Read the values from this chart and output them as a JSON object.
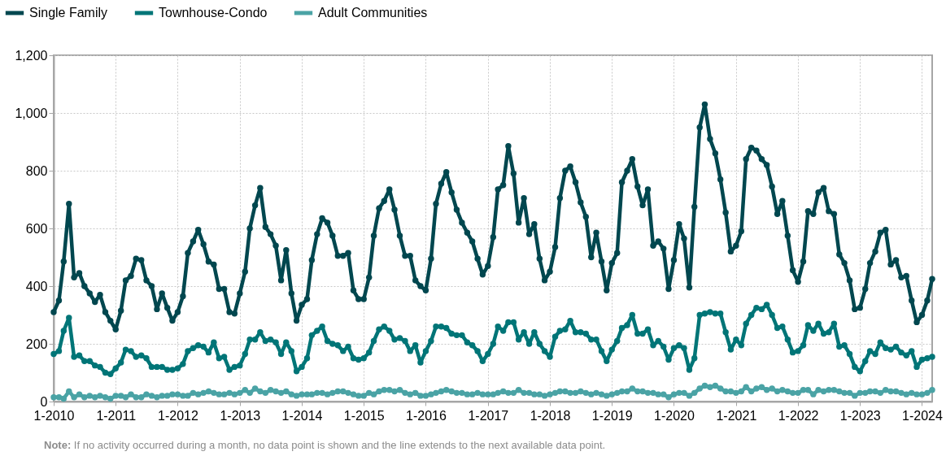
{
  "chart_data": {
    "type": "line",
    "legend": "top left",
    "marker": "circle",
    "grid": true,
    "annotations": [
      "Note: If no activity occurred during a month, no data point is shown and the line extends to the next available data point."
    ],
    "x": [
      "2010-01",
      "2010-02",
      "2010-03",
      "2010-04",
      "2010-05",
      "2010-06",
      "2010-07",
      "2010-08",
      "2010-09",
      "2010-10",
      "2010-11",
      "2010-12",
      "2011-01",
      "2011-02",
      "2011-03",
      "2011-04",
      "2011-05",
      "2011-06",
      "2011-07",
      "2011-08",
      "2011-09",
      "2011-10",
      "2011-11",
      "2011-12",
      "2012-01",
      "2012-02",
      "2012-03",
      "2012-04",
      "2012-05",
      "2012-06",
      "2012-07",
      "2012-08",
      "2012-09",
      "2012-10",
      "2012-11",
      "2012-12",
      "2013-01",
      "2013-02",
      "2013-03",
      "2013-04",
      "2013-05",
      "2013-06",
      "2013-07",
      "2013-08",
      "2013-09",
      "2013-10",
      "2013-11",
      "2013-12",
      "2014-01",
      "2014-02",
      "2014-03",
      "2014-04",
      "2014-05",
      "2014-06",
      "2014-07",
      "2014-08",
      "2014-09",
      "2014-10",
      "2014-11",
      "2014-12",
      "2015-01",
      "2015-02",
      "2015-03",
      "2015-04",
      "2015-05",
      "2015-06",
      "2015-07",
      "2015-08",
      "2015-09",
      "2015-10",
      "2015-11",
      "2015-12",
      "2016-01",
      "2016-02",
      "2016-03",
      "2016-04",
      "2016-05",
      "2016-06",
      "2016-07",
      "2016-08",
      "2016-09",
      "2016-10",
      "2016-11",
      "2016-12",
      "2017-01",
      "2017-02",
      "2017-03",
      "2017-04",
      "2017-05",
      "2017-06",
      "2017-07",
      "2017-08",
      "2017-09",
      "2017-10",
      "2017-11",
      "2017-12",
      "2018-01",
      "2018-02",
      "2018-03",
      "2018-04",
      "2018-05",
      "2018-06",
      "2018-07",
      "2018-08",
      "2018-09",
      "2018-10",
      "2018-11",
      "2018-12",
      "2019-01",
      "2019-02",
      "2019-03",
      "2019-04",
      "2019-05",
      "2019-06",
      "2019-07",
      "2019-08",
      "2019-09",
      "2019-10",
      "2019-11",
      "2019-12",
      "2020-01",
      "2020-02",
      "2020-03",
      "2020-04",
      "2020-05",
      "2020-06",
      "2020-07",
      "2020-08",
      "2020-09",
      "2020-10",
      "2020-11",
      "2020-12",
      "2021-01",
      "2021-02",
      "2021-03",
      "2021-04",
      "2021-05",
      "2021-06",
      "2021-07",
      "2021-08",
      "2021-09",
      "2021-10",
      "2021-11",
      "2021-12",
      "2022-01",
      "2022-02",
      "2022-03",
      "2022-04",
      "2022-05",
      "2022-06",
      "2022-07",
      "2022-08",
      "2022-09",
      "2022-10",
      "2022-11",
      "2022-12",
      "2023-01",
      "2023-02",
      "2023-03",
      "2023-04",
      "2023-05",
      "2023-06",
      "2023-07",
      "2023-08",
      "2023-09",
      "2023-10",
      "2023-11",
      "2023-12",
      "2024-01",
      "2024-02",
      "2024-03"
    ],
    "xlim": [
      "2010-01",
      "2024-03"
    ],
    "xticks": [
      {
        "value": "2010-01",
        "label": "1-2010"
      },
      {
        "value": "2011-01",
        "label": "1-2011"
      },
      {
        "value": "2012-01",
        "label": "1-2012"
      },
      {
        "value": "2013-01",
        "label": "1-2013"
      },
      {
        "value": "2014-01",
        "label": "1-2014"
      },
      {
        "value": "2015-01",
        "label": "1-2015"
      },
      {
        "value": "2016-01",
        "label": "1-2016"
      },
      {
        "value": "2017-01",
        "label": "1-2017"
      },
      {
        "value": "2018-01",
        "label": "1-2018"
      },
      {
        "value": "2019-01",
        "label": "1-2019"
      },
      {
        "value": "2020-01",
        "label": "1-2020"
      },
      {
        "value": "2021-01",
        "label": "1-2021"
      },
      {
        "value": "2022-01",
        "label": "1-2022"
      },
      {
        "value": "2023-01",
        "label": "1-2023"
      },
      {
        "value": "2024-01",
        "label": "1-2024"
      }
    ],
    "ylim": [
      0,
      1200
    ],
    "yticks": [
      0,
      200,
      400,
      600,
      800,
      {
        "value": 1000,
        "label": "1,000"
      },
      {
        "value": 1200,
        "label": "1,200"
      }
    ],
    "series": [
      {
        "name": "Single Family",
        "color": "#00474f",
        "values": [
          310,
          350,
          485,
          685,
          430,
          445,
          400,
          375,
          345,
          370,
          310,
          280,
          250,
          315,
          420,
          435,
          495,
          490,
          420,
          400,
          320,
          375,
          325,
          280,
          310,
          365,
          515,
          555,
          595,
          545,
          485,
          475,
          390,
          390,
          310,
          305,
          375,
          450,
          600,
          680,
          740,
          605,
          580,
          540,
          420,
          525,
          375,
          280,
          335,
          355,
          490,
          580,
          635,
          620,
          575,
          505,
          505,
          515,
          385,
          355,
          355,
          430,
          575,
          670,
          695,
          735,
          665,
          575,
          505,
          505,
          420,
          400,
          385,
          495,
          685,
          755,
          795,
          725,
          665,
          620,
          585,
          555,
          495,
          440,
          470,
          570,
          735,
          750,
          885,
          790,
          620,
          705,
          580,
          615,
          495,
          420,
          450,
          535,
          705,
          800,
          815,
          760,
          690,
          640,
          500,
          585,
          485,
          385,
          480,
          515,
          760,
          800,
          840,
          745,
          680,
          735,
          540,
          555,
          530,
          390,
          490,
          615,
          565,
          395,
          675,
          950,
          1030,
          910,
          860,
          770,
          655,
          520,
          540,
          590,
          840,
          880,
          870,
          840,
          820,
          745,
          650,
          695,
          575,
          455,
          415,
          485,
          660,
          650,
          725,
          740,
          660,
          650,
          510,
          480,
          420,
          320,
          325,
          390,
          480,
          520,
          585,
          595,
          475,
          490,
          430,
          435,
          350,
          275,
          300,
          350,
          425
        ]
      },
      {
        "name": "Townhouse-Condo",
        "color": "#007577",
        "values": [
          165,
          175,
          245,
          290,
          155,
          160,
          140,
          140,
          125,
          120,
          100,
          95,
          115,
          135,
          180,
          175,
          155,
          160,
          150,
          120,
          120,
          120,
          110,
          110,
          115,
          130,
          175,
          185,
          195,
          190,
          170,
          205,
          150,
          155,
          110,
          120,
          125,
          165,
          215,
          215,
          240,
          210,
          215,
          205,
          165,
          205,
          175,
          105,
          120,
          150,
          230,
          245,
          260,
          210,
          200,
          195,
          175,
          190,
          150,
          145,
          150,
          170,
          210,
          250,
          260,
          245,
          215,
          220,
          210,
          175,
          195,
          135,
          175,
          210,
          260,
          260,
          255,
          235,
          230,
          230,
          205,
          195,
          175,
          140,
          165,
          200,
          260,
          245,
          275,
          275,
          215,
          240,
          200,
          240,
          200,
          175,
          155,
          225,
          245,
          250,
          280,
          240,
          240,
          235,
          215,
          215,
          175,
          140,
          180,
          210,
          255,
          265,
          300,
          235,
          235,
          250,
          195,
          210,
          190,
          145,
          185,
          195,
          185,
          110,
          150,
          300,
          305,
          310,
          305,
          305,
          240,
          180,
          215,
          195,
          270,
          300,
          325,
          320,
          335,
          300,
          255,
          260,
          215,
          170,
          175,
          195,
          265,
          245,
          270,
          235,
          240,
          270,
          190,
          195,
          165,
          120,
          105,
          140,
          175,
          165,
          205,
          185,
          180,
          190,
          170,
          160,
          175,
          120,
          145,
          150,
          155
        ]
      },
      {
        "name": "Adult Communities",
        "color": "#4aa3a5",
        "values": [
          15,
          15,
          10,
          35,
          15,
          25,
          15,
          20,
          15,
          20,
          15,
          10,
          20,
          20,
          15,
          25,
          15,
          15,
          25,
          20,
          15,
          20,
          20,
          25,
          25,
          20,
          20,
          30,
          25,
          30,
          35,
          30,
          25,
          25,
          30,
          25,
          30,
          40,
          30,
          45,
          35,
          30,
          40,
          35,
          30,
          35,
          25,
          20,
          25,
          25,
          25,
          30,
          30,
          25,
          30,
          35,
          35,
          30,
          25,
          20,
          20,
          30,
          25,
          35,
          40,
          40,
          35,
          40,
          30,
          25,
          30,
          20,
          20,
          25,
          30,
          35,
          40,
          35,
          30,
          30,
          25,
          25,
          30,
          25,
          25,
          25,
          30,
          35,
          30,
          30,
          40,
          30,
          30,
          25,
          25,
          20,
          25,
          30,
          35,
          35,
          30,
          30,
          35,
          30,
          25,
          30,
          25,
          20,
          25,
          30,
          35,
          35,
          45,
          35,
          35,
          30,
          30,
          25,
          25,
          15,
          25,
          30,
          30,
          20,
          30,
          45,
          55,
          50,
          55,
          45,
          35,
          35,
          30,
          35,
          50,
          35,
          45,
          50,
          40,
          45,
          35,
          40,
          35,
          30,
          30,
          40,
          40,
          25,
          40,
          35,
          40,
          40,
          35,
          30,
          30,
          20,
          30,
          30,
          35,
          35,
          30,
          40,
          35,
          35,
          30,
          25,
          30,
          25,
          25,
          30,
          40
        ]
      }
    ]
  }
}
